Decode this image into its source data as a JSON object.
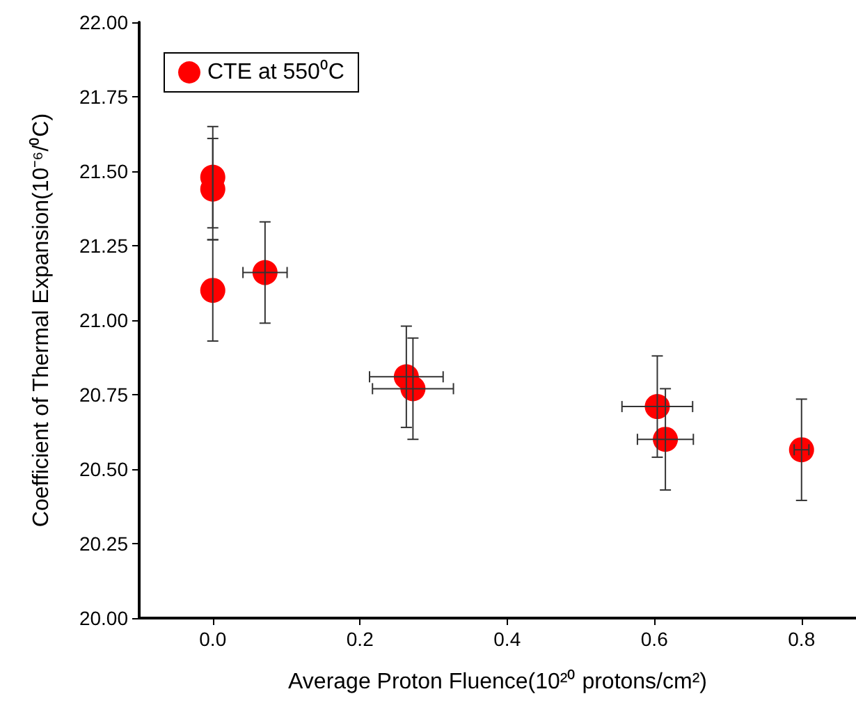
{
  "chart_data": {
    "type": "scatter",
    "xlabel": "Average Proton Fluence(10²⁰ protons/cm²)",
    "ylabel": "Coefficient of Thermal Expansion(10⁻⁶/⁰C)",
    "series": [
      {
        "name": "CTE at 550⁰C",
        "color": "#ff0000",
        "x": [
          0,
          0,
          0,
          0.071,
          0.263,
          0.272,
          0.604,
          0.615,
          0.8
        ],
        "values": [
          21.48,
          21.44,
          21.1,
          21.16,
          20.81,
          20.77,
          20.71,
          20.6,
          20.565
        ],
        "errors": [
          0.17,
          0.17,
          0.17,
          0.17,
          0.17,
          0.17,
          0.17,
          0.17,
          0.17
        ],
        "xerrors": [
          null,
          null,
          null,
          0.03,
          0.05,
          0.055,
          0.048,
          0.038,
          0.01
        ]
      }
    ],
    "xlim": [
      -0.1,
      0.874
    ],
    "xticks": [
      {
        "value": 0,
        "label": "0.0"
      },
      {
        "value": 0.2,
        "label": "0.2"
      },
      {
        "value": 0.4,
        "label": "0.4"
      },
      {
        "value": 0.6,
        "label": "0.6"
      },
      {
        "value": 0.8,
        "label": "0.8"
      }
    ],
    "ylim": [
      20,
      22
    ],
    "yticks": [
      {
        "value": 20,
        "label": "20.00"
      },
      {
        "value": 20.25,
        "label": "20.25"
      },
      {
        "value": 20.5,
        "label": "20.50"
      },
      {
        "value": 20.75,
        "label": "20.75"
      },
      {
        "value": 21,
        "label": "21.00"
      },
      {
        "value": 21.25,
        "label": "21.25"
      },
      {
        "value": 21.5,
        "label": "21.50"
      },
      {
        "value": 21.75,
        "label": "21.75"
      },
      {
        "value": 22,
        "label": "22.00"
      }
    ],
    "marker": "circle",
    "grid": false,
    "legend": "top left"
  }
}
